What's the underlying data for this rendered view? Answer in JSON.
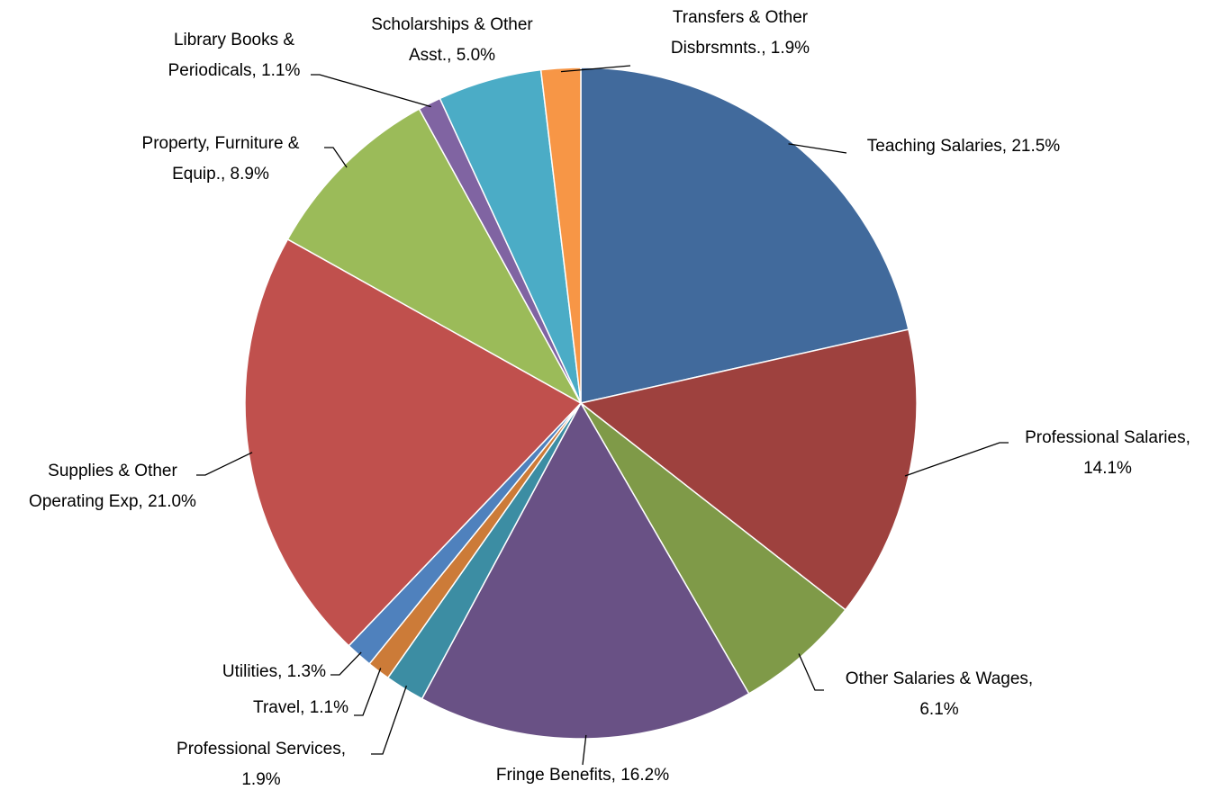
{
  "chart_data": {
    "type": "pie",
    "values": [
      21.5,
      14.1,
      6.1,
      16.2,
      1.9,
      1.1,
      1.3,
      21.0,
      8.9,
      1.1,
      5.0,
      1.9
    ],
    "value_labels": [
      [
        "Teaching Salaries, 21.5%"
      ],
      [
        "Professional Salaries,",
        "14.1%"
      ],
      [
        "Other Salaries & Wages,",
        "6.1%"
      ],
      [
        "Fringe Benefits, 16.2%"
      ],
      [
        "Professional Services,",
        "1.9%"
      ],
      [
        "Travel, 1.1%"
      ],
      [
        "Utilities, 1.3%"
      ],
      [
        "Supplies & Other",
        "Operating Exp, 21.0%"
      ],
      [
        "Property, Furniture &",
        "Equip., 8.9%"
      ],
      [
        "Library Books &",
        "Periodicals, 1.1%"
      ],
      [
        "Scholarships & Other",
        "Asst., 5.0%"
      ],
      [
        "Transfers & Other",
        "Disbrsmnts., 1.9%"
      ]
    ],
    "colors": [
      "#416a9c",
      "#9e413e",
      "#7f9a48",
      "#695185",
      "#3c8da3",
      "#cc7b38",
      "#4f81bd",
      "#c0504d",
      "#9bbb59",
      "#8064a2",
      "#4bacc6",
      "#f79646"
    ]
  }
}
